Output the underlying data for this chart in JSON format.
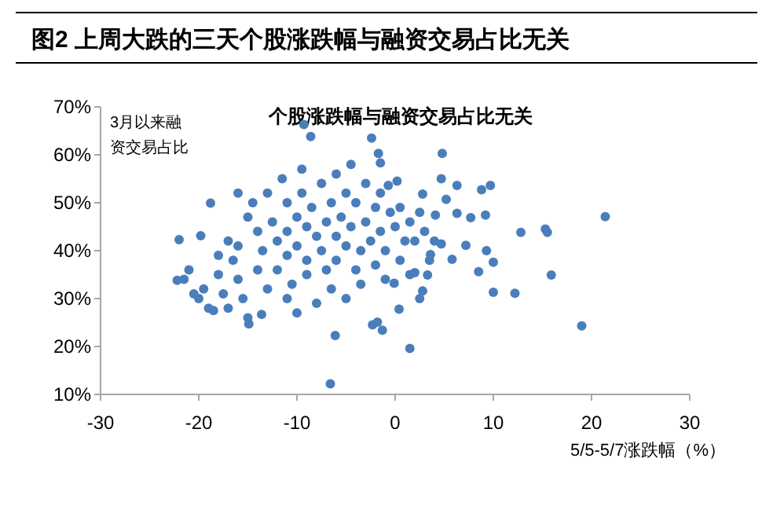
{
  "chart_data": {
    "type": "scatter",
    "title": "图2  上周大跌的三天个股涨跌幅与融资交易占比无关",
    "subtitle": "个股涨跌幅与融资交易占比无关",
    "xlabel": "5/5-5/7涨跌幅（%）",
    "ylabel": "3月以来融资交易占比",
    "xlim": [
      -30,
      30
    ],
    "xticks": [
      -30,
      -20,
      -10,
      0,
      10,
      20,
      30
    ],
    "ylim": [
      10,
      70
    ],
    "yticks": [
      {
        "value": 10,
        "label": "10%"
      },
      {
        "value": 20,
        "label": "20%"
      },
      {
        "value": 30,
        "label": "30%"
      },
      {
        "value": 40,
        "label": "40%"
      },
      {
        "value": 50,
        "label": "50%"
      },
      {
        "value": 60,
        "label": "60%"
      },
      {
        "value": 70,
        "label": "70%"
      }
    ],
    "marker": "circle",
    "grid": false,
    "series": [
      {
        "color": "#4a7ebb",
        "x": [
          -9.3,
          -8.6,
          -2.4,
          -1.7,
          -1.5,
          -22.0,
          -22.2,
          -18.8,
          -19.8,
          -14.9,
          -13.6,
          -6.6,
          -6.1,
          -1.3,
          1.5,
          21.4,
          19.0,
          15.9,
          15.3,
          15.5,
          12.8,
          12.2,
          10.0,
          10.0,
          8.5,
          9.3,
          9.2,
          9.7,
          8.8,
          7.7,
          7.2,
          6.3,
          6.3,
          4.8,
          4.7,
          5.2,
          5.8,
          0.4,
          2.5,
          2.8,
          3.3,
          -1.8,
          -2.3,
          0.2,
          -0.7,
          2.8,
          4.1,
          2.0,
          4.7,
          3.6,
          2.0,
          -0.1,
          -21,
          -21.5,
          -20.5,
          -20,
          -19.5,
          -19,
          -18.5,
          -18,
          -17.5,
          -17,
          -16.5,
          -16,
          -16,
          -15.5,
          -15,
          -15,
          -14.5,
          -14,
          -14,
          -13.5,
          -13,
          -13,
          -12.5,
          -12,
          -12,
          -11.5,
          -11,
          -11,
          -11,
          -11,
          -10.5,
          -10,
          -10,
          -10,
          -9.5,
          -9.5,
          -9,
          -9,
          -9,
          -8.5,
          -8,
          -8,
          -7.5,
          -7.5,
          -7,
          -7,
          -6.5,
          -6.5,
          -6,
          -6,
          -6,
          -5.5,
          -5,
          -5,
          -5,
          -4.5,
          -4.5,
          -4,
          -4,
          -3.5,
          -3.5,
          -3,
          -3,
          -2.5,
          -2,
          -2,
          -1.5,
          -1.5,
          -1,
          -1,
          -0.5,
          0,
          0.5,
          0.5,
          1,
          1.5,
          1.5,
          2.5,
          3,
          3.5,
          4,
          -16,
          -17,
          -18
        ],
        "values": [
          66.3,
          63.8,
          63.5,
          60.3,
          58.3,
          42.3,
          33.8,
          49.9,
          43.1,
          24.7,
          26.7,
          12.2,
          22.3,
          23.4,
          19.6,
          47.1,
          24.3,
          34.9,
          44.5,
          43.8,
          43.8,
          31.1,
          31.3,
          37.6,
          35.6,
          40.0,
          47.4,
          53.6,
          52.7,
          46.9,
          41.1,
          53.6,
          47.8,
          60.3,
          55.0,
          50.7,
          38.2,
          27.8,
          30.0,
          31.6,
          34.9,
          25.1,
          24.5,
          54.5,
          53.6,
          51.8,
          47.4,
          42.0,
          41.4,
          39.2,
          35.4,
          33.2,
          36,
          34,
          31,
          30,
          32,
          28,
          27.5,
          35,
          31,
          28,
          38,
          41,
          34,
          30,
          26,
          47,
          50,
          44,
          36,
          40,
          32,
          52,
          46,
          42,
          36,
          55,
          50,
          44,
          39,
          30,
          33,
          47,
          41,
          27,
          57,
          52,
          45,
          38,
          35,
          49,
          43,
          29,
          54,
          40,
          46,
          36,
          50,
          32,
          56,
          43,
          38,
          47,
          52,
          41,
          30,
          58,
          45,
          36,
          50,
          40,
          33,
          54,
          46,
          42,
          49,
          37,
          52,
          44,
          40,
          34,
          48,
          45,
          49,
          38,
          42,
          46,
          35,
          48,
          44,
          38,
          42,
          52,
          42,
          39
        ]
      }
    ]
  }
}
